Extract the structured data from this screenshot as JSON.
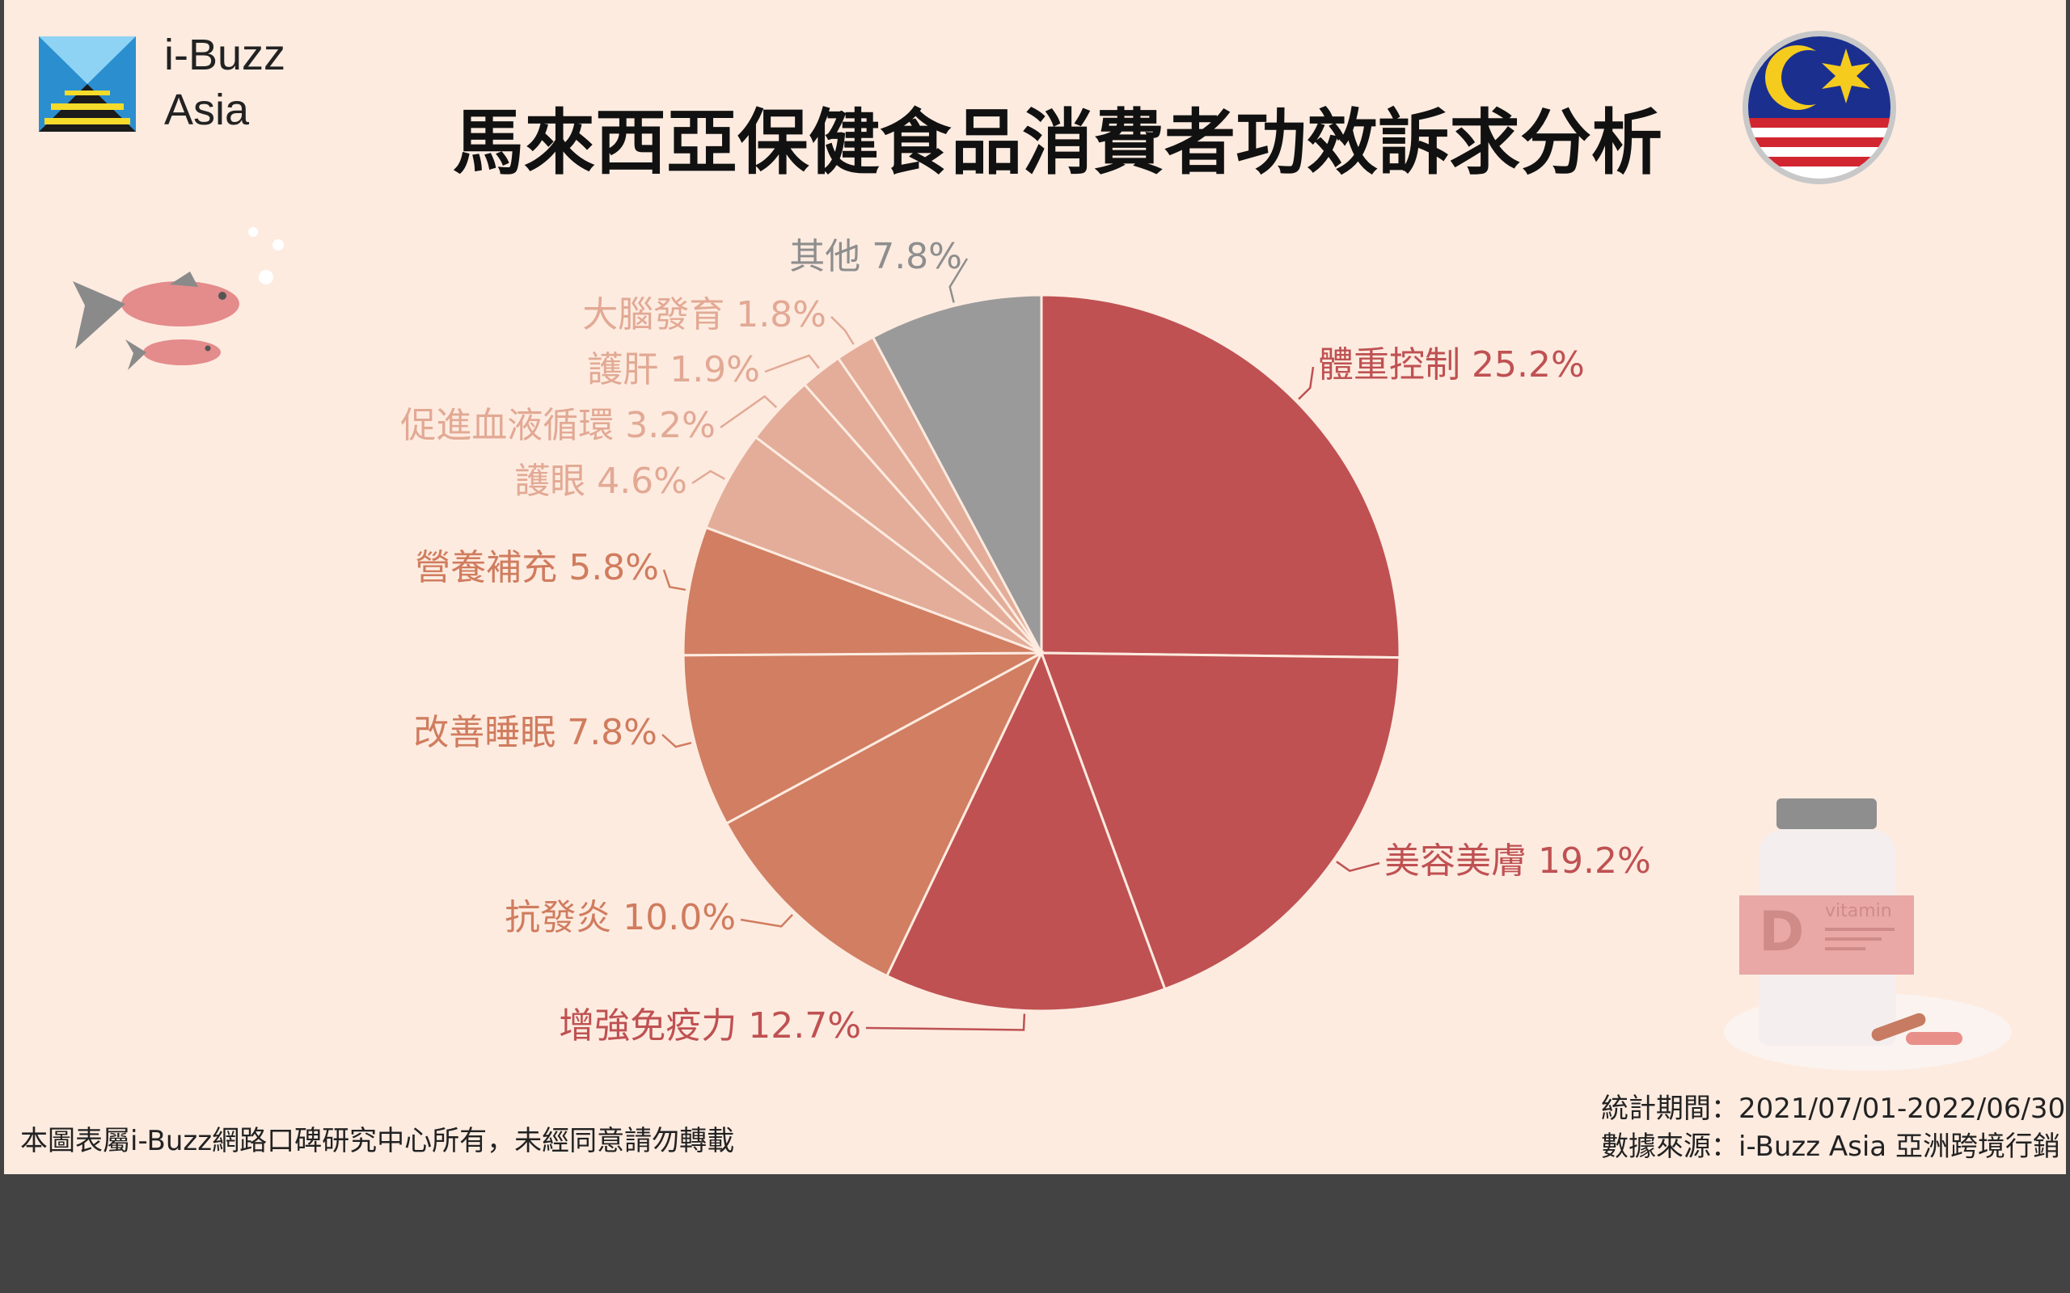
{
  "brand": {
    "line1": "i-Buzz",
    "line2": "Asia"
  },
  "chart_data": {
    "type": "pie",
    "title": "馬來西亞保健食品消費者功效訴求分析",
    "slices": [
      {
        "label": "體重控制",
        "value": 25.2,
        "color": "#bf5152"
      },
      {
        "label": "美容美膚",
        "value": 19.2,
        "color": "#bf5152"
      },
      {
        "label": "增強免疫力",
        "value": 12.7,
        "color": "#bf5152"
      },
      {
        "label": "抗發炎",
        "value": 10.0,
        "color": "#d17e62"
      },
      {
        "label": "改善睡眠",
        "value": 7.8,
        "color": "#d17e62"
      },
      {
        "label": "營養補充",
        "value": 5.8,
        "color": "#d17e62"
      },
      {
        "label": "護眼",
        "value": 4.6,
        "color": "#e3ad99"
      },
      {
        "label": "促進血液循環",
        "value": 3.2,
        "color": "#e3ad99"
      },
      {
        "label": "護肝",
        "value": 1.9,
        "color": "#e3ad99"
      },
      {
        "label": "大腦發育",
        "value": 1.8,
        "color": "#e3ad99"
      },
      {
        "label": "其他",
        "value": 7.8,
        "color": "#9a9a9a"
      }
    ],
    "label_colors": {
      "red": "#bf5152",
      "orange": "#d07c5e",
      "light": "#e2a994",
      "gray": "#8e8e8e"
    }
  },
  "footer": {
    "copyright": "本圖表屬i-Buzz網路口碑研究中心所有，未經同意請勿轉載",
    "period": "統計期間：2021/07/01-2022/06/30",
    "source": "數據來源：i-Buzz Asia 亞洲跨境行銷"
  },
  "decor": {
    "vitamin_letter": "D",
    "vitamin_word": "vitamin",
    "flag": "malaysia-flag",
    "fish": "fish-illustration",
    "bottle": "vitamin-bottle-illustration"
  }
}
